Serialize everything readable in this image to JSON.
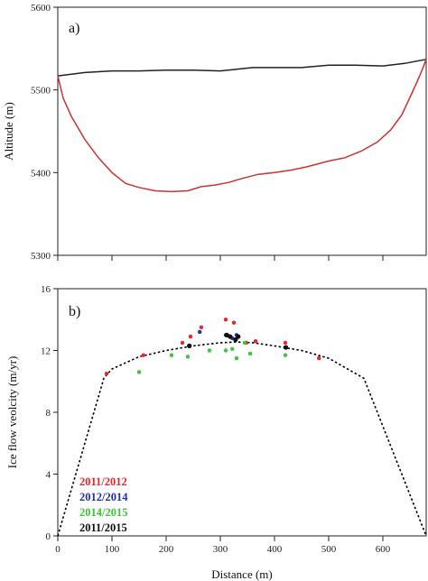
{
  "chart_data": [
    {
      "type": "line",
      "panel_label": "a)",
      "ylabel": "Altitude (m)",
      "xlabel": "",
      "xlim": [
        0,
        680
      ],
      "ylim": [
        5300,
        5600
      ],
      "yticks": [
        5300,
        5400,
        5500,
        5600
      ],
      "xticks": [
        0,
        100,
        200,
        300,
        400,
        500,
        600
      ],
      "show_x_tick_labels": false,
      "series": [
        {
          "color": "#222222",
          "x": [
            0,
            50,
            100,
            150,
            200,
            250,
            300,
            330,
            360,
            400,
            450,
            500,
            550,
            600,
            640,
            680
          ],
          "y": [
            5517,
            5521,
            5523,
            5523,
            5524,
            5524,
            5523,
            5525,
            5527,
            5527,
            5527,
            5530,
            5530,
            5529,
            5532,
            5537
          ]
        },
        {
          "color": "#cc3333",
          "x": [
            0,
            10,
            25,
            50,
            75,
            100,
            125,
            150,
            180,
            210,
            240,
            265,
            290,
            315,
            340,
            370,
            400,
            430,
            460,
            500,
            530,
            560,
            590,
            615,
            635,
            655,
            670,
            680
          ],
          "y": [
            5517,
            5490,
            5468,
            5440,
            5418,
            5400,
            5387,
            5382,
            5378,
            5377,
            5378,
            5383,
            5385,
            5388,
            5393,
            5398,
            5400,
            5403,
            5407,
            5414,
            5418,
            5426,
            5437,
            5452,
            5470,
            5498,
            5520,
            5537
          ]
        }
      ]
    },
    {
      "type": "scatter",
      "panel_label": "b)",
      "ylabel": "Ice flow veolcity (m/yr)",
      "xlabel": "Distance (m)",
      "xlim": [
        0,
        680
      ],
      "ylim": [
        0,
        16
      ],
      "yticks": [
        0,
        4,
        8,
        12,
        16
      ],
      "xticks": [
        0,
        100,
        200,
        300,
        400,
        500,
        600
      ],
      "fit_line": {
        "style": "dotted",
        "color": "#000000",
        "x": [
          0,
          85,
          100,
          150,
          200,
          250,
          300,
          330,
          360,
          400,
          450,
          500,
          565,
          680
        ],
        "y": [
          0,
          10.2,
          10.8,
          11.6,
          12.0,
          12.3,
          12.5,
          12.55,
          12.5,
          12.3,
          12.0,
          11.5,
          10.2,
          0
        ]
      },
      "series": [
        {
          "name": "2011/2012",
          "color": "#e8262b",
          "x": [
            90,
            158,
            230,
            245,
            265,
            310,
            325,
            348,
            365,
            420,
            482
          ],
          "y": [
            10.5,
            11.7,
            12.5,
            12.9,
            13.5,
            14.0,
            13.8,
            12.5,
            12.6,
            12.5,
            11.5
          ]
        },
        {
          "name": "2012/2014",
          "color": "#1f2fb4",
          "x": [
            242,
            262,
            310,
            322,
            330,
            420
          ],
          "y": [
            12.3,
            13.2,
            13.0,
            12.8,
            13.0,
            12.2
          ]
        },
        {
          "name": "2014/2015",
          "color": "#3cc43c",
          "x": [
            150,
            210,
            240,
            280,
            310,
            322,
            330,
            345,
            355,
            420
          ],
          "y": [
            10.6,
            11.7,
            11.6,
            12.0,
            12.0,
            12.1,
            11.5,
            12.5,
            11.8,
            11.7
          ]
        },
        {
          "name": "2011/2015",
          "color": "#111111",
          "x": [
            243,
            312,
            318,
            328,
            333,
            421
          ],
          "y": [
            12.3,
            13.0,
            12.9,
            12.7,
            12.9,
            12.2
          ]
        }
      ]
    }
  ]
}
